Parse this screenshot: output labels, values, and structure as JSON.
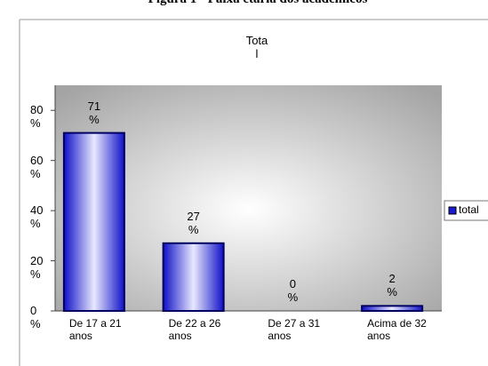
{
  "caption": "Figura 1 - Faixa etária dos acadêmicos",
  "chart_data": {
    "type": "bar",
    "title": "Total",
    "categories": [
      "De 17 a 21 anos",
      "De 22 a 26 anos",
      "De 27 a 31 anos",
      "Acima de 32 anos"
    ],
    "series": [
      {
        "name": "total",
        "color": "#1a1ad8",
        "values": [
          71,
          27,
          0,
          2
        ],
        "value_labels": [
          "71 %",
          "27 %",
          "0 %",
          "2 %"
        ]
      }
    ],
    "ylim": [
      0,
      90
    ],
    "yticks": [
      {
        "value": 0,
        "label": "0 %"
      },
      {
        "value": 20,
        "label": "20 %"
      },
      {
        "value": 40,
        "label": "40 %"
      },
      {
        "value": 60,
        "label": "60 %"
      },
      {
        "value": 80,
        "label": "80 %"
      }
    ],
    "legend": "right"
  }
}
